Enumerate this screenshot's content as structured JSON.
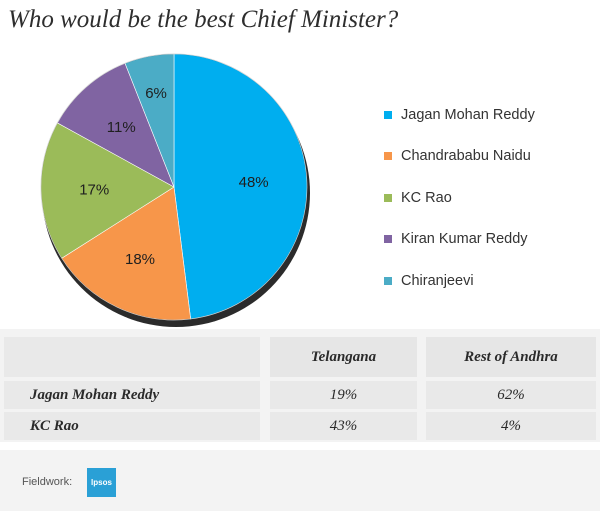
{
  "title": "Who would be the best Chief Minister?",
  "chart_data": {
    "type": "pie",
    "title": "Who would be the best Chief Minister?",
    "categories": [
      "Jagan Mohan Reddy",
      "Chandrababu Naidu",
      "KC Rao",
      "Kiran Kumar Reddy",
      "Chiranjeevi"
    ],
    "values": [
      48,
      18,
      17,
      11,
      6
    ],
    "labels": [
      "48%",
      "18%",
      "17%",
      "11%",
      "6%"
    ],
    "colors": [
      "#00aeef",
      "#f7964a",
      "#9bbb59",
      "#8064a2",
      "#4bacc6"
    ],
    "legend": "right"
  },
  "table": {
    "headers": [
      "Telangana",
      "Rest of Andhra"
    ],
    "rows": [
      {
        "label": "Jagan Mohan Reddy",
        "telangana": "19%",
        "rest": "62%"
      },
      {
        "label": "KC Rao",
        "telangana": "43%",
        "rest": "4%"
      }
    ]
  },
  "footer": {
    "fieldwork_label": "Fieldwork:",
    "logo_text": "Ipsos"
  }
}
